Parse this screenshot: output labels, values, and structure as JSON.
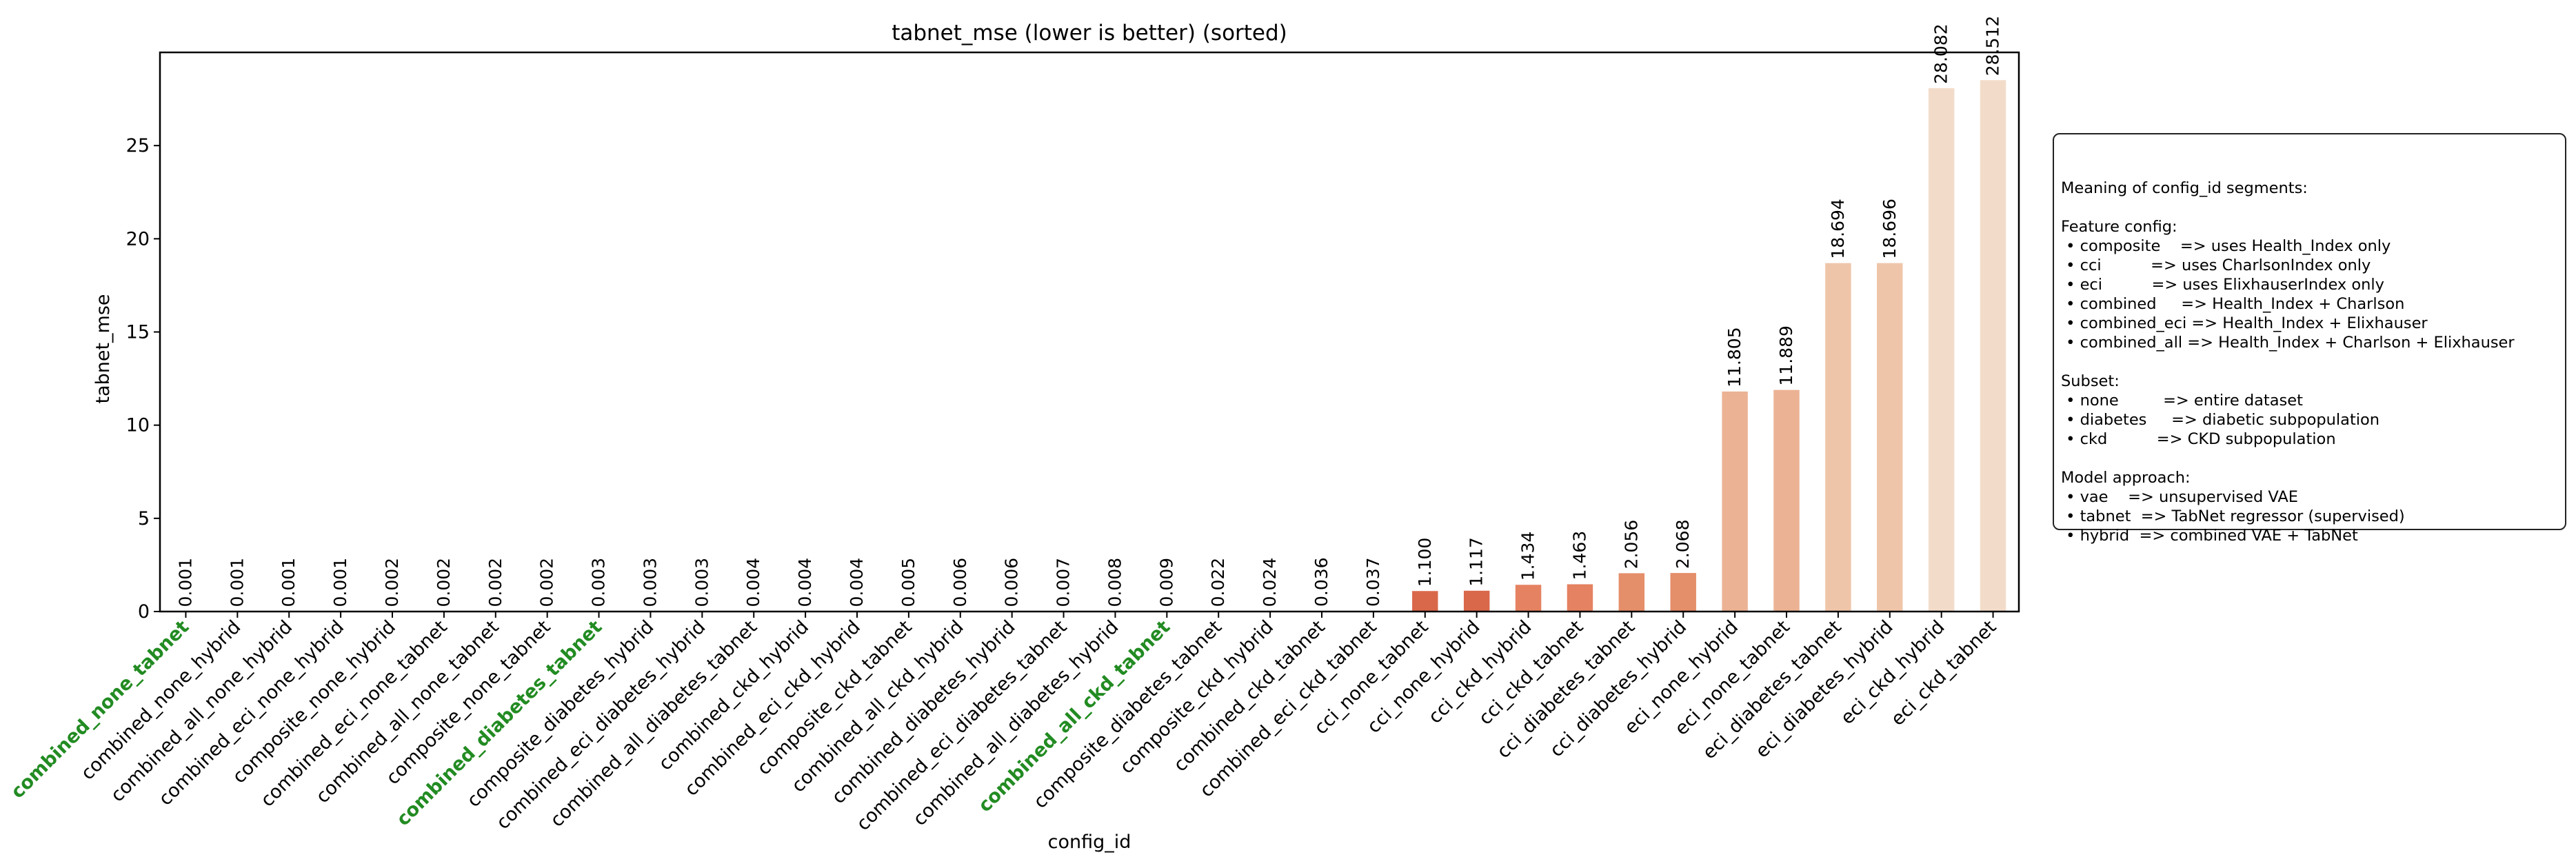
{
  "chart_data": {
    "type": "bar",
    "title": "tabnet_mse (lower is better) (sorted)",
    "xlabel": "config_id",
    "ylabel": "tabnet_mse",
    "ylim": [
      0,
      30
    ],
    "yticks": [
      "0",
      "5",
      "10",
      "15",
      "20",
      "25"
    ],
    "grid": false,
    "highlight_color": "#228b22",
    "categories": [
      "combined_none_tabnet",
      "combined_none_hybrid",
      "combined_all_none_hybrid",
      "combined_eci_none_hybrid",
      "composite_none_hybrid",
      "combined_eci_none_tabnet",
      "combined_all_none_tabnet",
      "composite_none_tabnet",
      "combined_diabetes_tabnet",
      "composite_diabetes_hybrid",
      "combined_eci_diabetes_hybrid",
      "combined_all_diabetes_tabnet",
      "combined_ckd_hybrid",
      "combined_eci_ckd_hybrid",
      "composite_ckd_tabnet",
      "combined_all_ckd_hybrid",
      "combined_diabetes_hybrid",
      "combined_eci_diabetes_tabnet",
      "combined_all_diabetes_hybrid",
      "combined_all_ckd_tabnet",
      "composite_diabetes_tabnet",
      "composite_ckd_hybrid",
      "combined_ckd_tabnet",
      "combined_eci_ckd_tabnet",
      "cci_none_tabnet",
      "cci_none_hybrid",
      "cci_ckd_hybrid",
      "cci_ckd_tabnet",
      "cci_diabetes_tabnet",
      "cci_diabetes_hybrid",
      "eci_none_hybrid",
      "eci_none_tabnet",
      "eci_diabetes_tabnet",
      "eci_diabetes_hybrid",
      "eci_ckd_hybrid",
      "eci_ckd_tabnet"
    ],
    "values": [
      0.001,
      0.001,
      0.001,
      0.001,
      0.002,
      0.002,
      0.002,
      0.002,
      0.003,
      0.003,
      0.003,
      0.004,
      0.004,
      0.004,
      0.005,
      0.006,
      0.006,
      0.007,
      0.008,
      0.009,
      0.022,
      0.024,
      0.036,
      0.037,
      1.1,
      1.117,
      1.434,
      1.463,
      2.056,
      2.068,
      11.805,
      11.889,
      18.694,
      18.696,
      28.082,
      28.512
    ],
    "value_labels": [
      "0.001",
      "0.001",
      "0.001",
      "0.001",
      "0.002",
      "0.002",
      "0.002",
      "0.002",
      "0.003",
      "0.003",
      "0.003",
      "0.004",
      "0.004",
      "0.004",
      "0.005",
      "0.006",
      "0.006",
      "0.007",
      "0.008",
      "0.009",
      "0.022",
      "0.024",
      "0.036",
      "0.037",
      "1.100",
      "1.117",
      "1.434",
      "1.463",
      "2.056",
      "2.068",
      "11.805",
      "11.889",
      "18.694",
      "18.696",
      "28.082",
      "28.512"
    ],
    "colors": [
      "#b73f2a",
      "#b73f2a",
      "#b73f2a",
      "#b73f2a",
      "#b73f2a",
      "#b73f2a",
      "#b73f2a",
      "#b73f2a",
      "#b73f2a",
      "#b73f2a",
      "#b73f2a",
      "#b73f2a",
      "#b73f2a",
      "#b73f2a",
      "#b73f2a",
      "#b73f2a",
      "#b73f2a",
      "#b73f2a",
      "#b73f2a",
      "#b73f2a",
      "#b73f2a",
      "#b73f2a",
      "#b73f2a",
      "#b73f2a",
      "#d9684a",
      "#d9684a",
      "#e58262",
      "#e58262",
      "#e58e6a",
      "#e58e6a",
      "#ebb294",
      "#ebb294",
      "#efc5a9",
      "#efc5a9",
      "#f2dcc9",
      "#f2dcc9"
    ],
    "highlighted": [
      true,
      false,
      false,
      false,
      false,
      false,
      false,
      false,
      true,
      false,
      false,
      false,
      false,
      false,
      false,
      false,
      false,
      false,
      false,
      true,
      false,
      false,
      false,
      false,
      false,
      false,
      false,
      false,
      false,
      false,
      false,
      false,
      false,
      false,
      false,
      false
    ],
    "legend_text": [
      "Meaning of config_id segments:",
      "",
      "Feature config:",
      " • composite    => uses Health_Index only",
      " • cci          => uses CharlsonIndex only",
      " • eci          => uses ElixhauserIndex only",
      " • combined     => Health_Index + Charlson",
      " • combined_eci => Health_Index + Elixhauser",
      " • combined_all => Health_Index + Charlson + Elixhauser",
      "",
      "Subset:",
      " • none         => entire dataset",
      " • diabetes     => diabetic subpopulation",
      " • ckd          => CKD subpopulation",
      "",
      "Model approach:",
      " • vae    => unsupervised VAE",
      " • tabnet  => TabNet regressor (supervised)",
      " • hybrid  => combined VAE + TabNet"
    ],
    "legend_placement": "right"
  }
}
